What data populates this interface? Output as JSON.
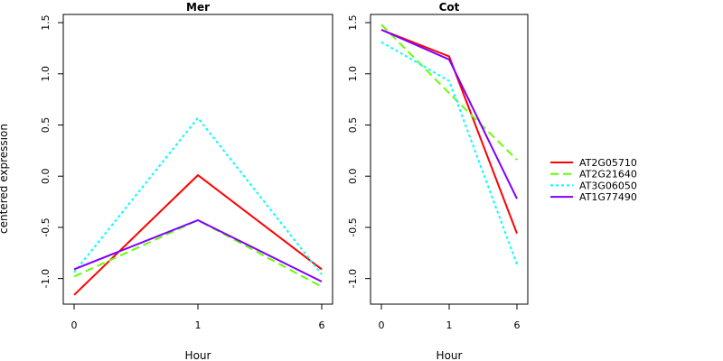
{
  "figure": {
    "ylabel": "centered expression",
    "xlabel": "Hour"
  },
  "legend": {
    "placement": "right",
    "entries": [
      {
        "name": "AT2G05710",
        "color": "#ff0000",
        "dash": "solid"
      },
      {
        "name": "AT2G21640",
        "color": "#66ff00",
        "dash": "dashed"
      },
      {
        "name": "AT3G06050",
        "color": "#00ffff",
        "dash": "dotted"
      },
      {
        "name": "AT1G77490",
        "color": "#8000ff",
        "dash": "solid"
      }
    ]
  },
  "chart_data": [
    {
      "type": "line",
      "title": "Mer",
      "xlabel": "Hour",
      "ylabel": "centered expression",
      "categories": [
        "0",
        "1",
        "6"
      ],
      "ylim": [
        -1.25,
        1.58
      ],
      "yticks": [
        -1.0,
        -0.5,
        0.0,
        0.5,
        1.0,
        1.5
      ],
      "ytick_labels": [
        "-1.0",
        "-0.5",
        "0.0",
        "0.5",
        "1.0",
        "1.5"
      ],
      "series": [
        {
          "name": "AT2G05710",
          "values": [
            -1.16,
            0.01,
            -0.91
          ]
        },
        {
          "name": "AT2G21640",
          "values": [
            -0.98,
            -0.43,
            -1.08
          ]
        },
        {
          "name": "AT3G06050",
          "values": [
            -0.94,
            0.57,
            -0.96
          ]
        },
        {
          "name": "AT1G77490",
          "values": [
            -0.91,
            -0.43,
            -1.03
          ]
        }
      ]
    },
    {
      "type": "line",
      "title": "Cot",
      "xlabel": "Hour",
      "ylabel": "",
      "categories": [
        "0",
        "1",
        "6"
      ],
      "ylim": [
        -1.25,
        1.58
      ],
      "yticks": [
        -1.0,
        -0.5,
        0.0,
        0.5,
        1.0,
        1.5
      ],
      "ytick_labels": [
        "-1.0",
        "-0.5",
        "0.0",
        "0.5",
        "1.0",
        "1.5"
      ],
      "series": [
        {
          "name": "AT2G05710",
          "values": [
            1.43,
            1.17,
            -0.56
          ]
        },
        {
          "name": "AT2G21640",
          "values": [
            1.48,
            0.81,
            0.16
          ]
        },
        {
          "name": "AT3G06050",
          "values": [
            1.31,
            0.93,
            -0.86
          ]
        },
        {
          "name": "AT1G77490",
          "values": [
            1.43,
            1.14,
            -0.22
          ]
        }
      ]
    }
  ]
}
